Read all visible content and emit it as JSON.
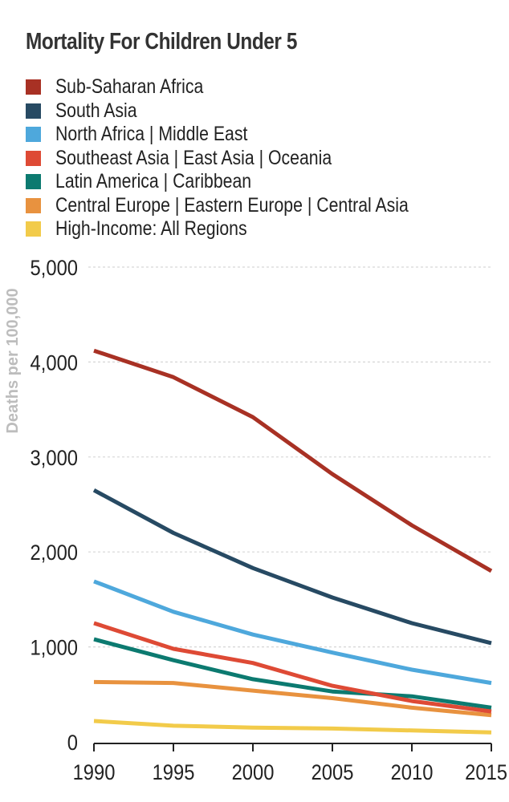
{
  "chart_data": {
    "type": "line",
    "title": "Mortality For Children Under 5",
    "xlabel": "",
    "ylabel": "Deaths per 100,000",
    "x": [
      1990,
      1995,
      2000,
      2005,
      2010,
      2015
    ],
    "xlim": [
      1990,
      2015
    ],
    "ylim": [
      0,
      5000
    ],
    "yticks": [
      0,
      1000,
      2000,
      3000,
      4000,
      5000
    ],
    "ytick_labels": [
      "0",
      "1,000",
      "2,000",
      "3,000",
      "4,000",
      "5,000"
    ],
    "xtick_labels": [
      "1990",
      "1995",
      "2000",
      "2005",
      "2010",
      "2015"
    ],
    "grid": "horizontal dashed",
    "legend_position": "top",
    "series": [
      {
        "name": "Sub-Saharan Africa",
        "color": "#a83124",
        "values": [
          4120,
          3840,
          3420,
          2820,
          2280,
          1800
        ]
      },
      {
        "name": "South Asia",
        "color": "#274a63",
        "values": [
          2650,
          2200,
          1830,
          1520,
          1250,
          1040
        ]
      },
      {
        "name": "North Africa | Middle East",
        "color": "#4ea8dc",
        "values": [
          1690,
          1370,
          1130,
          940,
          760,
          620
        ]
      },
      {
        "name": "Southeast Asia | East Asia | Oceania",
        "color": "#de4a35",
        "values": [
          1250,
          980,
          830,
          590,
          430,
          320
        ]
      },
      {
        "name": "Latin America | Caribbean",
        "color": "#0c7a70",
        "values": [
          1080,
          860,
          660,
          530,
          480,
          360
        ]
      },
      {
        "name": "Central Europe | Eastern Europe | Central Asia",
        "color": "#e8923f",
        "values": [
          630,
          620,
          540,
          460,
          360,
          280
        ]
      },
      {
        "name": "High-Income: All Regions",
        "color": "#f2cb4a",
        "values": [
          220,
          170,
          150,
          140,
          120,
          100
        ]
      }
    ]
  }
}
